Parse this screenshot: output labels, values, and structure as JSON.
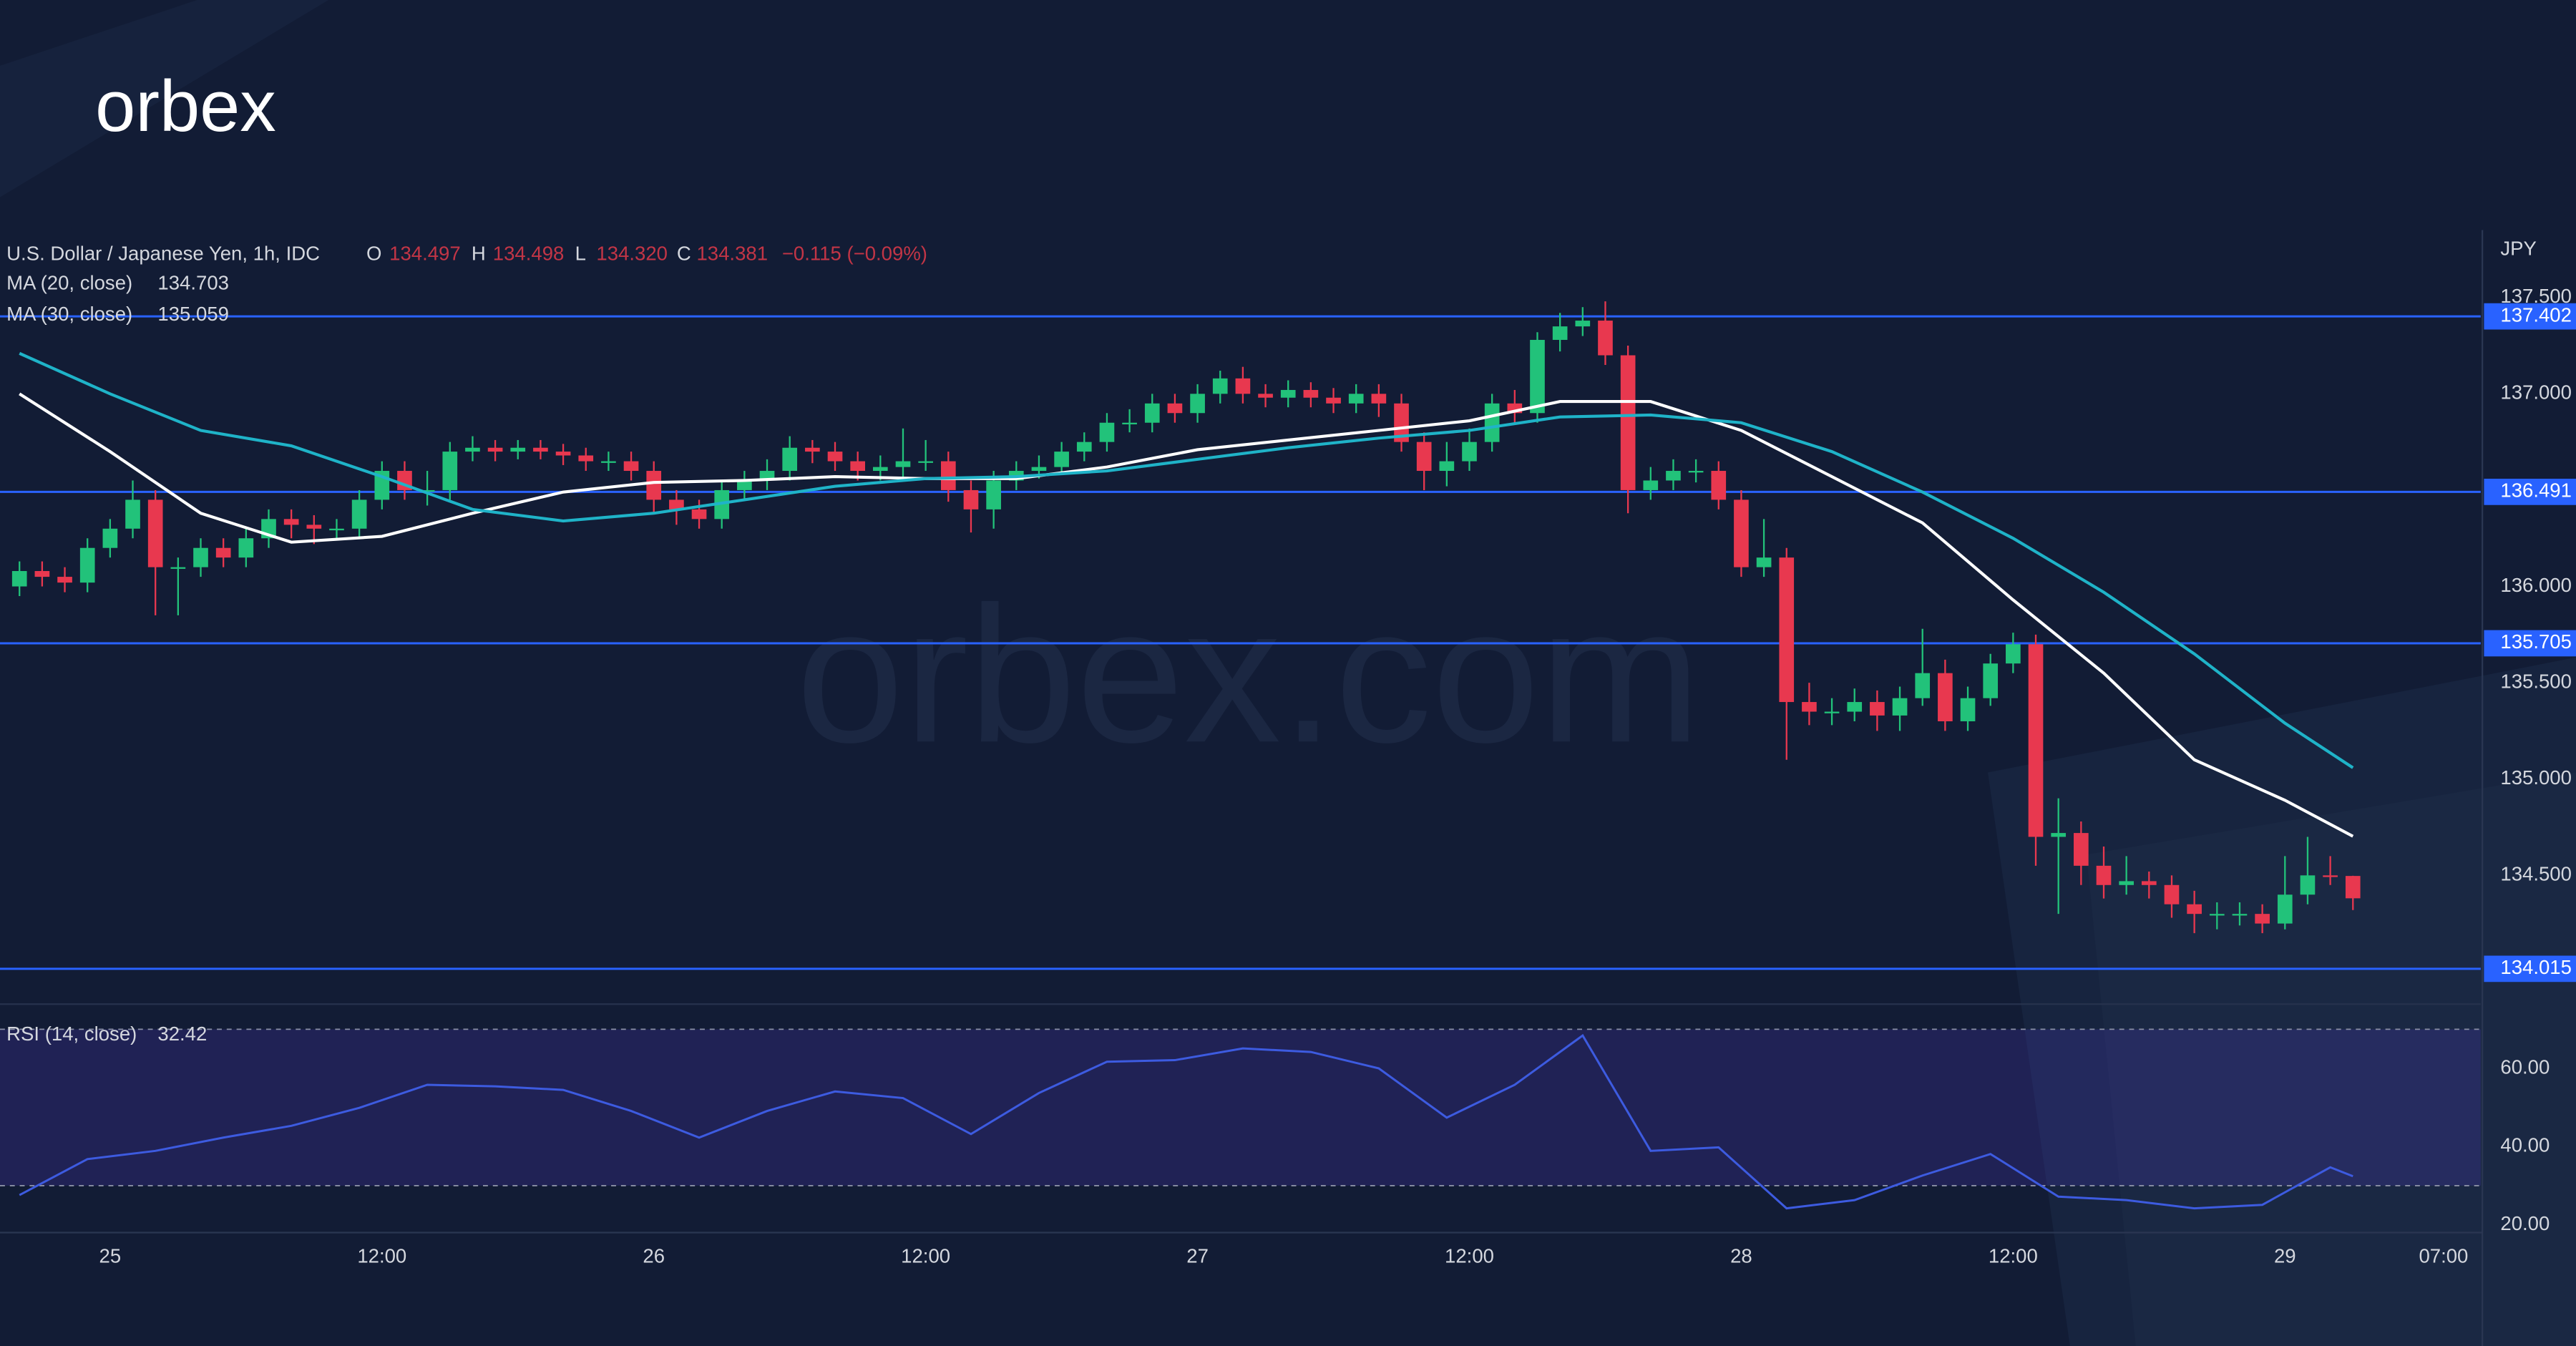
{
  "logo": "orbex",
  "watermark": "orbex.com",
  "chart_data": {
    "type": "candlestick",
    "title": "U.S. Dollar / Japanese Yen, 1h, IDC",
    "ohlc_legend": [
      {
        "label": "O",
        "value": "134.497"
      },
      {
        "label": "H",
        "value": "134.498"
      },
      {
        "label": "L",
        "value": "134.320"
      },
      {
        "label": "C",
        "value": "134.381"
      }
    ],
    "change": "−0.115 (−0.09%)",
    "y_unit": "JPY",
    "up_color": "#22c27a",
    "down_color": "#e8384f",
    "x": [
      -4,
      -3,
      -2,
      -1,
      0,
      1,
      2,
      3,
      4,
      5,
      6,
      7,
      8,
      9,
      10,
      11,
      12,
      13,
      14,
      15,
      16,
      17,
      18,
      19,
      20,
      21,
      22,
      23,
      24,
      25,
      26,
      27,
      28,
      29,
      30,
      31,
      32,
      33,
      34,
      35,
      36,
      37,
      38,
      39,
      40,
      41,
      42,
      43,
      44,
      45,
      46,
      47,
      48,
      49,
      50,
      51,
      52,
      53,
      54,
      55,
      56,
      57,
      58,
      59,
      60,
      61,
      62,
      63,
      64,
      65,
      66,
      67,
      68,
      69,
      70,
      71,
      72,
      73,
      74,
      75,
      76,
      77,
      78,
      79,
      80,
      81,
      82,
      83,
      84,
      85,
      86,
      87,
      88,
      89,
      90,
      91,
      92,
      93,
      94,
      95,
      96,
      97,
      98,
      99
    ],
    "open": [
      136.0,
      136.08,
      136.05,
      136.02,
      136.2,
      136.3,
      136.45,
      136.1,
      136.1,
      136.2,
      136.15,
      136.25,
      136.35,
      136.32,
      136.3,
      136.3,
      136.45,
      136.6,
      136.5,
      136.5,
      136.7,
      136.72,
      136.7,
      136.72,
      136.7,
      136.68,
      136.65,
      136.65,
      136.6,
      136.45,
      136.4,
      136.35,
      136.5,
      136.55,
      136.6,
      136.72,
      136.7,
      136.65,
      136.6,
      136.62,
      136.65,
      136.65,
      136.5,
      136.4,
      136.55,
      136.6,
      136.62,
      136.7,
      136.75,
      136.85,
      136.85,
      136.95,
      136.9,
      137.0,
      137.08,
      137.0,
      136.98,
      137.02,
      136.98,
      136.95,
      137.0,
      136.95,
      136.75,
      136.6,
      136.65,
      136.75,
      136.95,
      136.9,
      137.28,
      137.35,
      137.38,
      137.2,
      136.5,
      136.55,
      136.6,
      136.6,
      136.45,
      136.1,
      136.15,
      135.4,
      135.35,
      135.35,
      135.4,
      135.33,
      135.42,
      135.55,
      135.3,
      135.42,
      135.6,
      135.7,
      134.7,
      134.72,
      134.55,
      134.45,
      134.47,
      134.45,
      134.35,
      134.3,
      134.3,
      134.3,
      134.25,
      134.4,
      134.5,
      134.497
    ],
    "high": [
      136.13,
      136.13,
      136.1,
      136.25,
      136.35,
      136.55,
      136.5,
      136.15,
      136.25,
      136.25,
      136.3,
      136.4,
      136.4,
      136.37,
      136.35,
      136.5,
      136.65,
      136.65,
      136.6,
      136.75,
      136.78,
      136.76,
      136.76,
      136.76,
      136.74,
      136.72,
      136.7,
      136.7,
      136.65,
      136.5,
      136.45,
      136.55,
      136.6,
      136.66,
      136.78,
      136.76,
      136.75,
      136.7,
      136.68,
      136.82,
      136.76,
      136.7,
      136.55,
      136.6,
      136.65,
      136.68,
      136.75,
      136.8,
      136.9,
      136.92,
      137.0,
      137.0,
      137.05,
      137.12,
      137.14,
      137.05,
      137.07,
      137.06,
      137.03,
      137.05,
      137.05,
      137.0,
      136.8,
      136.75,
      136.82,
      137.0,
      137.02,
      137.32,
      137.42,
      137.45,
      137.48,
      137.25,
      136.62,
      136.66,
      136.66,
      136.65,
      136.5,
      136.35,
      136.2,
      135.5,
      135.42,
      135.47,
      135.46,
      135.48,
      135.78,
      135.62,
      135.48,
      135.65,
      135.76,
      135.75,
      134.9,
      134.78,
      134.65,
      134.6,
      134.52,
      134.5,
      134.42,
      134.36,
      134.36,
      134.35,
      134.6,
      134.7,
      134.6,
      134.498
    ],
    "low": [
      135.95,
      136.0,
      135.97,
      135.97,
      136.15,
      136.25,
      135.85,
      135.85,
      136.05,
      136.1,
      136.1,
      136.2,
      136.25,
      136.22,
      136.25,
      136.25,
      136.4,
      136.45,
      136.42,
      136.45,
      136.65,
      136.65,
      136.66,
      136.66,
      136.63,
      136.6,
      136.6,
      136.55,
      136.38,
      136.32,
      136.3,
      136.3,
      136.45,
      136.5,
      136.55,
      136.64,
      136.6,
      136.55,
      136.55,
      136.57,
      136.6,
      136.44,
      136.28,
      136.3,
      136.5,
      136.56,
      136.58,
      136.65,
      136.7,
      136.8,
      136.8,
      136.85,
      136.85,
      136.95,
      136.95,
      136.93,
      136.93,
      136.93,
      136.9,
      136.9,
      136.88,
      136.7,
      136.5,
      136.52,
      136.6,
      136.7,
      136.85,
      136.85,
      137.22,
      137.3,
      137.15,
      136.38,
      136.45,
      136.5,
      136.54,
      136.4,
      136.05,
      136.05,
      135.1,
      135.28,
      135.28,
      135.3,
      135.25,
      135.25,
      135.38,
      135.25,
      135.25,
      135.38,
      135.55,
      134.55,
      134.3,
      134.45,
      134.38,
      134.4,
      134.38,
      134.28,
      134.2,
      134.22,
      134.24,
      134.2,
      134.22,
      134.35,
      134.45,
      134.32
    ],
    "close": [
      136.08,
      136.05,
      136.02,
      136.2,
      136.3,
      136.45,
      136.1,
      136.1,
      136.2,
      136.15,
      136.25,
      136.35,
      136.32,
      136.3,
      136.3,
      136.45,
      136.6,
      136.5,
      136.5,
      136.7,
      136.72,
      136.7,
      136.72,
      136.7,
      136.68,
      136.65,
      136.65,
      136.6,
      136.45,
      136.4,
      136.35,
      136.5,
      136.55,
      136.6,
      136.72,
      136.7,
      136.65,
      136.6,
      136.62,
      136.65,
      136.65,
      136.5,
      136.4,
      136.55,
      136.6,
      136.62,
      136.7,
      136.75,
      136.85,
      136.85,
      136.95,
      136.9,
      137.0,
      137.08,
      137.0,
      136.98,
      137.02,
      136.98,
      136.95,
      137.0,
      136.95,
      136.75,
      136.6,
      136.65,
      136.75,
      136.95,
      136.9,
      137.28,
      137.35,
      137.38,
      137.2,
      136.5,
      136.55,
      136.6,
      136.6,
      136.45,
      136.1,
      136.15,
      135.4,
      135.35,
      135.35,
      135.4,
      135.33,
      135.42,
      135.55,
      135.3,
      135.42,
      135.6,
      135.7,
      134.7,
      134.72,
      134.55,
      134.45,
      134.47,
      134.45,
      134.35,
      134.3,
      134.3,
      134.3,
      134.25,
      134.4,
      134.5,
      134.497,
      134.381
    ],
    "xlim": [
      -4.86,
      104.64
    ],
    "xticks": [
      {
        "value": 0,
        "label": "25"
      },
      {
        "value": 12,
        "label": "12:00"
      },
      {
        "value": 24,
        "label": "26"
      },
      {
        "value": 36,
        "label": "12:00"
      },
      {
        "value": 48,
        "label": "27"
      },
      {
        "value": 60,
        "label": "12:00"
      },
      {
        "value": 72,
        "label": "28"
      },
      {
        "value": 84,
        "label": "12:00"
      },
      {
        "value": 96,
        "label": "29"
      },
      {
        "value": 103,
        "label": "07:00"
      }
    ],
    "ylim": [
      133.84,
      137.85
    ],
    "yticks": [
      {
        "value": 137.5,
        "label": "137.500"
      },
      {
        "value": 137,
        "label": "137.000"
      },
      {
        "value": 136,
        "label": "136.000"
      },
      {
        "value": 135.5,
        "label": "135.500"
      },
      {
        "value": 135,
        "label": "135.000"
      },
      {
        "value": 134.5,
        "label": "134.500"
      }
    ],
    "levels": [
      137.402,
      136.491,
      135.705,
      134.015
    ],
    "level_color": "#2962ff",
    "series": [
      {
        "name": "MA (20, close)",
        "last_label": "134.703",
        "color": "#ffffff",
        "x": [
          -4,
          0,
          4,
          8,
          12,
          16,
          20,
          24,
          28,
          32,
          36,
          40,
          44,
          48,
          52,
          56,
          60,
          64,
          68,
          72,
          76,
          80,
          84,
          88,
          92,
          96,
          99
        ],
        "values": [
          137.0,
          136.7,
          136.38,
          136.23,
          136.26,
          136.38,
          136.49,
          136.54,
          136.55,
          136.57,
          136.56,
          136.56,
          136.62,
          136.71,
          136.76,
          136.81,
          136.86,
          136.96,
          136.96,
          136.81,
          136.57,
          136.33,
          135.93,
          135.55,
          135.1,
          134.89,
          134.703
        ]
      },
      {
        "name": "MA (30, close)",
        "last_label": "135.059",
        "color": "#1fb3c8",
        "x": [
          -4,
          0,
          4,
          8,
          12,
          16,
          20,
          24,
          28,
          32,
          36,
          40,
          44,
          48,
          52,
          56,
          60,
          64,
          68,
          72,
          76,
          80,
          84,
          88,
          92,
          96,
          99
        ],
        "values": [
          137.21,
          137.0,
          136.81,
          136.73,
          136.57,
          136.4,
          136.34,
          136.38,
          136.45,
          136.52,
          136.56,
          136.57,
          136.6,
          136.66,
          136.72,
          136.77,
          136.81,
          136.88,
          136.89,
          136.85,
          136.7,
          136.49,
          136.25,
          135.97,
          135.65,
          135.29,
          135.059
        ]
      }
    ],
    "rsi": {
      "name": "RSI (14, close)",
      "last_label": "32.42",
      "color": "#3d5be0",
      "x": [
        -4,
        -1,
        2,
        5,
        8,
        11,
        14,
        17,
        20,
        23,
        26,
        29,
        32,
        35,
        38,
        41,
        44,
        47,
        50,
        53,
        56,
        59,
        62,
        65,
        68,
        71,
        74,
        77,
        80,
        83,
        86,
        89,
        92,
        95,
        98,
        99
      ],
      "values": [
        27.6,
        36.8,
        38.9,
        42.3,
        45.3,
        49.9,
        55.8,
        55.4,
        54.5,
        49.1,
        42.3,
        49.1,
        54.1,
        52.4,
        43.2,
        53.7,
        61.7,
        62.1,
        65.1,
        64.2,
        60.0,
        47.4,
        55.8,
        68.4,
        38.9,
        39.8,
        24.2,
        26.3,
        32.6,
        38.1,
        27.2,
        26.3,
        24.2,
        25.1,
        34.7,
        32.42
      ],
      "ylim": [
        18,
        76
      ],
      "yticks": [
        {
          "value": 60,
          "label": "60.00"
        },
        {
          "value": 40,
          "label": "40.00"
        },
        {
          "value": 20,
          "label": "20.00"
        }
      ],
      "bands": [
        30,
        70
      ]
    }
  }
}
